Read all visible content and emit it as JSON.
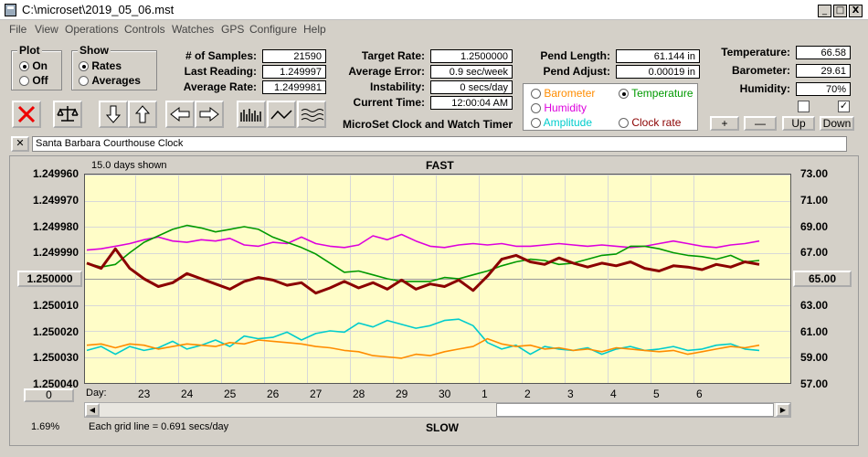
{
  "window": {
    "title": "C:\\microset\\2019_05_06.mst",
    "min": "_",
    "max": "□",
    "close": "X"
  },
  "menu": [
    "File",
    "View",
    "Operations",
    "Controls",
    "Watches",
    "GPS",
    "Configure",
    "Help"
  ],
  "plot_group": {
    "title": "Plot",
    "on": "On",
    "off": "Off",
    "selected": "On"
  },
  "show_group": {
    "title": "Show",
    "rates": "Rates",
    "averages": "Averages",
    "selected": "Rates"
  },
  "stats1": [
    {
      "label": "# of Samples:",
      "value": "21590"
    },
    {
      "label": "Last Reading:",
      "value": "1.249997"
    },
    {
      "label": "Average Rate:",
      "value": "1.2499981"
    }
  ],
  "stats2": [
    {
      "label": "Target Rate:",
      "value": "1.2500000"
    },
    {
      "label": "Average Error:",
      "value": "0.9 sec/week"
    },
    {
      "label": "Instability:",
      "value": "0 secs/day"
    },
    {
      "label": "Current Time:",
      "value": "12:00:04 AM"
    }
  ],
  "stats3": [
    {
      "label": "Pend Length:",
      "value": "61.144 in"
    },
    {
      "label": "Pend Adjust:",
      "value": "0.00019 in"
    }
  ],
  "stats4": [
    {
      "label": "Temperature:",
      "value": "66.58"
    },
    {
      "label": "Barometer:",
      "value": "29.61"
    },
    {
      "label": "Humidity:",
      "value": "70%"
    }
  ],
  "app_title": "MicroSet Clock and Watch Timer",
  "sensor_radios": [
    {
      "label": "Barometer",
      "color": "#ff8c00",
      "on": false
    },
    {
      "label": "Temperature",
      "color": "#009900",
      "on": true
    },
    {
      "label": "Humidity",
      "color": "#dd00dd",
      "on": false
    },
    {
      "label": "Amplitude",
      "color": "#00cccc",
      "on": false
    },
    {
      "label": "Clock rate",
      "color": "#8b0000",
      "on": false
    }
  ],
  "right_buttons": [
    "+",
    "—",
    "Up",
    "Down"
  ],
  "checkbox_mark": "✓",
  "clock_name": "Santa Barbara Courthouse Clock",
  "clear_btn": "✕",
  "chart_header": {
    "days_shown": "15.0 days shown",
    "fast": "FAST",
    "slow": "SLOW",
    "footer": "Each grid line = 0.691 secs/day",
    "pct": "1.69%",
    "day_label": "Day:"
  },
  "left_btn": "1.250000",
  "right_btn": "65.00",
  "zero_btn": "0",
  "chart_data": {
    "type": "line",
    "x_labels": [
      "23",
      "24",
      "25",
      "26",
      "27",
      "28",
      "29",
      "30",
      "1",
      "2",
      "3",
      "4",
      "5",
      "6"
    ],
    "left_axis": {
      "labels": [
        "1.249960",
        "1.249970",
        "1.249980",
        "1.249990",
        "1.250000",
        "1.250010",
        "1.250020",
        "1.250030",
        "1.250040"
      ],
      "range": [
        1.24996,
        1.25004
      ]
    },
    "right_axis": {
      "labels": [
        "73.00",
        "71.00",
        "69.00",
        "67.00",
        "65.00",
        "63.00",
        "61.00",
        "59.00",
        "57.00"
      ],
      "range": [
        57,
        73
      ]
    },
    "grid": true,
    "series": [
      {
        "label": "Humidity",
        "color": "#dd00dd",
        "values": [
          67.2,
          67.3,
          67.5,
          67.7,
          68.0,
          68.2,
          67.9,
          67.8,
          68.0,
          67.9,
          68.1,
          67.6,
          67.5,
          67.8,
          67.7,
          68.2,
          67.7,
          67.5,
          67.4,
          67.6,
          68.3,
          68.0,
          68.4,
          67.9,
          67.5,
          67.4,
          67.6,
          67.7,
          67.6,
          67.7,
          67.5,
          67.5,
          67.6,
          67.7,
          67.6,
          67.5,
          67.6,
          67.5,
          67.4,
          67.5,
          67.7,
          67.9,
          67.7,
          67.5,
          67.4,
          67.6,
          67.7,
          67.9
        ]
      },
      {
        "label": "Temperature",
        "color": "#009900",
        "values": [
          66.2,
          65.9,
          66.1,
          67.0,
          67.8,
          68.3,
          68.8,
          69.1,
          68.9,
          68.6,
          68.8,
          69.0,
          68.8,
          68.2,
          67.8,
          67.4,
          66.9,
          66.2,
          65.5,
          65.6,
          65.3,
          65.0,
          64.8,
          64.8,
          64.8,
          65.1,
          65.0,
          65.3,
          65.6,
          66.0,
          66.3,
          66.5,
          66.4,
          66.1,
          66.2,
          66.5,
          66.8,
          66.9,
          67.5,
          67.5,
          67.3,
          67.0,
          66.8,
          66.7,
          66.5,
          66.8,
          66.3,
          66.4
        ]
      },
      {
        "label": "Clock rate",
        "color": "#8b0000",
        "values": [
          66.2,
          65.8,
          67.3,
          65.8,
          65.0,
          64.4,
          64.7,
          65.4,
          65.0,
          64.6,
          64.2,
          64.8,
          65.1,
          64.9,
          64.5,
          64.7,
          63.9,
          64.3,
          64.8,
          64.3,
          64.7,
          64.2,
          64.9,
          64.2,
          64.6,
          64.4,
          64.9,
          64.1,
          65.2,
          66.5,
          66.8,
          66.3,
          66.1,
          66.6,
          66.2,
          65.9,
          66.2,
          66.0,
          66.3,
          65.8,
          65.6,
          66.0,
          65.9,
          65.7,
          66.1,
          65.9,
          66.3,
          66.1
        ]
      },
      {
        "label": "Amplitude",
        "color": "#00cccc",
        "values": [
          59.5,
          59.8,
          59.2,
          59.8,
          59.5,
          59.7,
          60.2,
          59.6,
          59.9,
          60.3,
          59.8,
          60.6,
          60.4,
          60.5,
          60.9,
          60.3,
          60.8,
          61.0,
          60.9,
          61.6,
          61.3,
          61.8,
          61.5,
          61.2,
          61.4,
          61.8,
          61.9,
          61.4,
          60.1,
          59.6,
          59.9,
          59.2,
          59.8,
          59.6,
          59.5,
          59.7,
          59.2,
          59.6,
          59.8,
          59.5,
          59.6,
          59.8,
          59.5,
          59.6,
          59.9,
          60.0,
          59.6,
          59.5
        ]
      },
      {
        "label": "Barometer",
        "color": "#ff8c00",
        "values": [
          59.9,
          60.0,
          59.7,
          60.0,
          59.9,
          59.6,
          59.8,
          60.0,
          59.9,
          59.8,
          60.1,
          60.0,
          60.3,
          60.2,
          60.1,
          60.0,
          59.8,
          59.7,
          59.5,
          59.4,
          59.1,
          59.0,
          58.9,
          59.2,
          59.1,
          59.4,
          59.6,
          59.8,
          60.4,
          60.0,
          59.8,
          59.9,
          59.6,
          59.7,
          59.5,
          59.6,
          59.4,
          59.7,
          59.6,
          59.5,
          59.4,
          59.5,
          59.2,
          59.4,
          59.6,
          59.8,
          59.7,
          59.9
        ]
      }
    ]
  }
}
